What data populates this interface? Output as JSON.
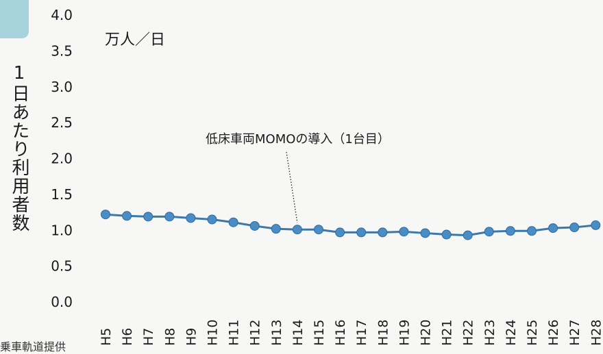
{
  "chart_data": {
    "type": "line",
    "ylabel": "1日あたり利用者数",
    "unit_label": "万人／日",
    "ylim": [
      0.0,
      4.0
    ],
    "yticks": [
      "0.0",
      "0.5",
      "1.0",
      "1.5",
      "2.0",
      "2.5",
      "3.0",
      "3.5",
      "4.0"
    ],
    "categories": [
      "H5",
      "H6",
      "H7",
      "H8",
      "H9",
      "H10",
      "H11",
      "H12",
      "H13",
      "H14",
      "H15",
      "H16",
      "H17",
      "H18",
      "H19",
      "H20",
      "H21",
      "H22",
      "H23",
      "H24",
      "H25",
      "H26",
      "H27",
      "H28"
    ],
    "series": [
      {
        "values": [
          1.22,
          1.2,
          1.19,
          1.19,
          1.17,
          1.15,
          1.11,
          1.06,
          1.02,
          1.01,
          1.01,
          0.97,
          0.97,
          0.97,
          0.98,
          0.96,
          0.94,
          0.93,
          0.98,
          0.99,
          0.99,
          1.03,
          1.04,
          1.07
        ]
      }
    ],
    "annotation": {
      "text": "低床車両MOMOの導入（1台目）",
      "category": "H14"
    },
    "colors": {
      "line": "#3b78ab",
      "marker": "#4a8cc4"
    }
  },
  "source_fragment": "乗車軌道提供"
}
